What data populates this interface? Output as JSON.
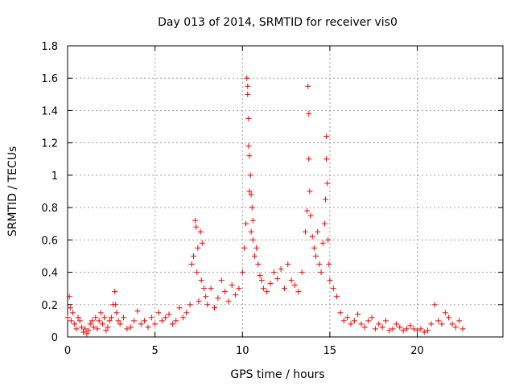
{
  "chart_data": {
    "type": "scatter",
    "title": "Day 013 of 2014, SRMTID for receiver vis0",
    "xlabel": "GPS time / hours",
    "ylabel": "SRMTID / TECUs",
    "xlim": [
      0,
      24.9
    ],
    "ylim": [
      0,
      1.8
    ],
    "x_ticks": [
      0,
      5,
      10,
      15,
      20
    ],
    "x_tick_labels": [
      "0",
      "5",
      "10",
      "15",
      "20"
    ],
    "y_ticks": [
      0,
      0.2,
      0.4,
      0.6,
      0.8,
      1.0,
      1.2,
      1.4,
      1.6,
      1.8
    ],
    "y_tick_labels": [
      "0",
      "0.2",
      "0.4",
      "0.6",
      "0.8",
      "1",
      "1.2",
      "1.4",
      "1.6",
      "1.8"
    ],
    "grid": true,
    "marker": "+",
    "series_color": "#ff0000",
    "series": [
      {
        "name": "SRMTID",
        "x": [
          0.0,
          0.1,
          0.15,
          0.2,
          0.3,
          0.4,
          0.5,
          0.6,
          0.7,
          0.8,
          0.9,
          1.0,
          1.1,
          1.2,
          1.3,
          1.4,
          1.5,
          1.6,
          1.7,
          1.8,
          1.9,
          2.0,
          2.1,
          2.2,
          2.3,
          2.4,
          2.5,
          2.6,
          2.7,
          2.75,
          2.8,
          2.9,
          3.0,
          3.2,
          3.4,
          3.6,
          3.8,
          4.0,
          4.2,
          4.4,
          4.6,
          4.8,
          5.0,
          5.2,
          5.4,
          5.6,
          5.8,
          6.0,
          6.2,
          6.4,
          6.6,
          6.8,
          7.0,
          7.1,
          7.2,
          7.3,
          7.35,
          7.4,
          7.45,
          7.5,
          7.6,
          7.65,
          7.7,
          7.8,
          7.9,
          8.0,
          8.2,
          8.4,
          8.6,
          8.8,
          9.0,
          9.2,
          9.4,
          9.6,
          9.8,
          10.0,
          10.1,
          10.2,
          10.25,
          10.3,
          10.3,
          10.35,
          10.35,
          10.4,
          10.4,
          10.45,
          10.5,
          10.5,
          10.55,
          10.6,
          10.6,
          10.7,
          10.8,
          10.9,
          11.0,
          11.1,
          11.2,
          11.4,
          11.6,
          11.8,
          12.0,
          12.2,
          12.4,
          12.6,
          12.8,
          13.0,
          13.2,
          13.4,
          13.6,
          13.7,
          13.75,
          13.8,
          13.8,
          13.85,
          13.9,
          14.0,
          14.1,
          14.2,
          14.3,
          14.4,
          14.5,
          14.6,
          14.7,
          14.75,
          14.8,
          14.8,
          14.85,
          14.9,
          14.95,
          15.0,
          15.2,
          15.4,
          15.6,
          15.8,
          16.0,
          16.2,
          16.4,
          16.6,
          16.8,
          17.0,
          17.2,
          17.4,
          17.6,
          17.8,
          18.0,
          18.2,
          18.4,
          18.6,
          18.8,
          19.0,
          19.2,
          19.4,
          19.6,
          19.8,
          20.0,
          20.2,
          20.4,
          20.6,
          20.8,
          21.0,
          21.2,
          21.4,
          21.6,
          21.8,
          22.0,
          22.2,
          22.4,
          22.6
        ],
        "y": [
          0.12,
          0.25,
          0.18,
          0.1,
          0.15,
          0.08,
          0.05,
          0.12,
          0.1,
          0.06,
          0.03,
          0.05,
          0.02,
          0.04,
          0.08,
          0.1,
          0.06,
          0.12,
          0.05,
          0.1,
          0.15,
          0.08,
          0.12,
          0.04,
          0.06,
          0.1,
          0.12,
          0.2,
          0.28,
          0.2,
          0.15,
          0.1,
          0.08,
          0.12,
          0.05,
          0.06,
          0.1,
          0.16,
          0.08,
          0.1,
          0.06,
          0.12,
          0.08,
          0.15,
          0.1,
          0.12,
          0.14,
          0.08,
          0.1,
          0.18,
          0.12,
          0.15,
          0.2,
          0.45,
          0.5,
          0.72,
          0.68,
          0.4,
          0.55,
          0.22,
          0.65,
          0.35,
          0.58,
          0.3,
          0.25,
          0.2,
          0.3,
          0.18,
          0.24,
          0.35,
          0.28,
          0.22,
          0.32,
          0.26,
          0.3,
          0.4,
          0.55,
          0.7,
          1.6,
          1.55,
          1.5,
          1.35,
          1.18,
          1.12,
          0.9,
          1.0,
          0.88,
          0.65,
          0.8,
          0.72,
          0.6,
          0.5,
          0.55,
          0.45,
          0.38,
          0.35,
          0.3,
          0.28,
          0.33,
          0.4,
          0.36,
          0.42,
          0.3,
          0.45,
          0.35,
          0.32,
          0.28,
          0.4,
          0.65,
          0.78,
          1.55,
          1.38,
          1.1,
          0.9,
          0.75,
          0.62,
          0.55,
          0.5,
          0.65,
          0.45,
          0.4,
          0.58,
          0.7,
          0.85,
          1.24,
          1.1,
          0.95,
          0.6,
          0.45,
          0.35,
          0.3,
          0.25,
          0.15,
          0.1,
          0.12,
          0.08,
          0.1,
          0.14,
          0.08,
          0.06,
          0.1,
          0.12,
          0.05,
          0.08,
          0.06,
          0.1,
          0.04,
          0.05,
          0.08,
          0.06,
          0.04,
          0.05,
          0.07,
          0.05,
          0.04,
          0.05,
          0.03,
          0.04,
          0.08,
          0.2,
          0.1,
          0.08,
          0.15,
          0.12,
          0.08,
          0.06,
          0.1,
          0.05
        ]
      }
    ]
  }
}
